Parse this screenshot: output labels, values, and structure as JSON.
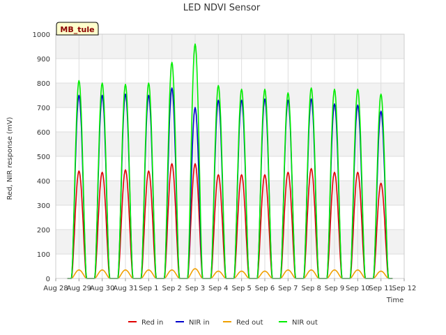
{
  "site_badge": "MB_tule",
  "chart_data": {
    "type": "line",
    "title": "LED NDVI Sensor",
    "xlabel": "Time",
    "ylabel": "Red, NIR response (mV)",
    "ylim": [
      0,
      1000
    ],
    "yticks": [
      0,
      100,
      200,
      300,
      400,
      500,
      600,
      700,
      800,
      900,
      1000
    ],
    "xticks": [
      "Aug 28",
      "Aug 29",
      "Aug 30",
      "Aug 31",
      "Sep 1",
      "Sep 2",
      "Sep 3",
      "Sep 4",
      "Sep 5",
      "Sep 6",
      "Sep 7",
      "Sep 8",
      "Sep 9",
      "Sep 10",
      "Sep 11",
      "Sep 12"
    ],
    "xlim_days": [
      0,
      15
    ],
    "grid": true,
    "legend_position": "bottom",
    "series": [
      {
        "name": "Red in",
        "color": "#e00000",
        "daily_peak": [
          440,
          435,
          445,
          440,
          470,
          470,
          425,
          425,
          425,
          435,
          450,
          435,
          435,
          390
        ]
      },
      {
        "name": "NIR in",
        "color": "#0000cc",
        "daily_peak": [
          750,
          750,
          755,
          750,
          780,
          700,
          730,
          730,
          735,
          730,
          735,
          715,
          710,
          685
        ]
      },
      {
        "name": "Red out",
        "color": "#f0a000",
        "daily_peak": [
          35,
          35,
          35,
          35,
          35,
          40,
          30,
          30,
          30,
          35,
          35,
          35,
          35,
          30
        ]
      },
      {
        "name": "NIR out",
        "color": "#00ee00",
        "daily_peak": [
          810,
          800,
          795,
          800,
          885,
          960,
          790,
          775,
          775,
          760,
          780,
          775,
          775,
          755
        ]
      }
    ],
    "day_peak_dates": [
      "Aug 29",
      "Aug 30",
      "Aug 31",
      "Sep 1",
      "Sep 2",
      "Sep 3",
      "Sep 4",
      "Sep 5",
      "Sep 6",
      "Sep 7",
      "Sep 8",
      "Sep 9",
      "Sep 10",
      "Sep 11"
    ]
  }
}
